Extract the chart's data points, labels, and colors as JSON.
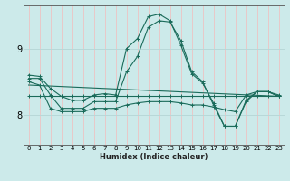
{
  "xlabel": "Humidex (Indice chaleur)",
  "x_ticks": [
    0,
    1,
    2,
    3,
    4,
    5,
    6,
    7,
    8,
    9,
    10,
    11,
    12,
    13,
    14,
    15,
    16,
    17,
    18,
    19,
    20,
    21,
    22,
    23
  ],
  "xlim": [
    -0.5,
    23.5
  ],
  "ylim": [
    7.55,
    9.65
  ],
  "y_ticks": [
    8,
    9
  ],
  "bg_color": "#cceaea",
  "grid_color_v": "#e8c8c8",
  "grid_color_h": "#b8d8d8",
  "line_color": "#1a6b5a",
  "lines": [
    {
      "x": [
        0,
        1,
        2,
        3,
        4,
        5,
        6,
        7,
        8,
        9,
        10,
        11,
        12,
        13,
        14,
        15,
        16,
        17,
        18,
        19,
        20,
        21,
        22,
        23
      ],
      "y": [
        8.28,
        8.28,
        8.28,
        8.28,
        8.28,
        8.28,
        8.28,
        8.28,
        8.28,
        8.28,
        8.28,
        8.28,
        8.28,
        8.28,
        8.28,
        8.28,
        8.28,
        8.28,
        8.28,
        8.28,
        8.28,
        8.28,
        8.28,
        8.28
      ]
    },
    {
      "x": [
        0,
        1,
        2,
        3,
        4,
        5,
        6,
        7,
        8,
        9,
        10,
        11,
        12,
        13,
        14,
        15,
        16,
        17,
        18,
        19,
        20,
        21,
        22,
        23
      ],
      "y": [
        8.5,
        8.45,
        8.1,
        8.05,
        8.05,
        8.05,
        8.1,
        8.1,
        8.1,
        8.15,
        8.18,
        8.2,
        8.2,
        8.2,
        8.18,
        8.15,
        8.15,
        8.12,
        8.08,
        8.05,
        8.3,
        8.35,
        8.35,
        8.3
      ]
    },
    {
      "x": [
        0,
        1,
        2,
        3,
        4,
        5,
        6,
        7,
        8,
        9,
        10,
        11,
        12,
        13,
        14,
        15,
        16,
        17,
        18,
        19,
        20,
        21,
        22,
        23
      ],
      "y": [
        8.55,
        8.55,
        8.3,
        8.1,
        8.1,
        8.1,
        8.2,
        8.2,
        8.2,
        8.65,
        8.88,
        9.32,
        9.42,
        9.4,
        9.12,
        8.65,
        8.5,
        8.15,
        7.83,
        7.83,
        8.22,
        8.35,
        8.35,
        8.28
      ]
    },
    {
      "x": [
        0,
        1,
        2,
        3,
        4,
        5,
        6,
        7,
        8,
        9,
        10,
        11,
        12,
        13,
        14,
        15,
        16,
        17,
        18,
        19,
        20,
        21,
        22,
        23
      ],
      "y": [
        8.6,
        8.58,
        8.4,
        8.28,
        8.22,
        8.22,
        8.3,
        8.32,
        8.3,
        9.0,
        9.15,
        9.48,
        9.52,
        9.42,
        9.05,
        8.62,
        8.48,
        8.18,
        7.83,
        7.83,
        8.2,
        8.35,
        8.35,
        8.28
      ]
    }
  ],
  "line_diag": {
    "x": [
      0,
      23
    ],
    "y": [
      8.45,
      8.28
    ]
  }
}
